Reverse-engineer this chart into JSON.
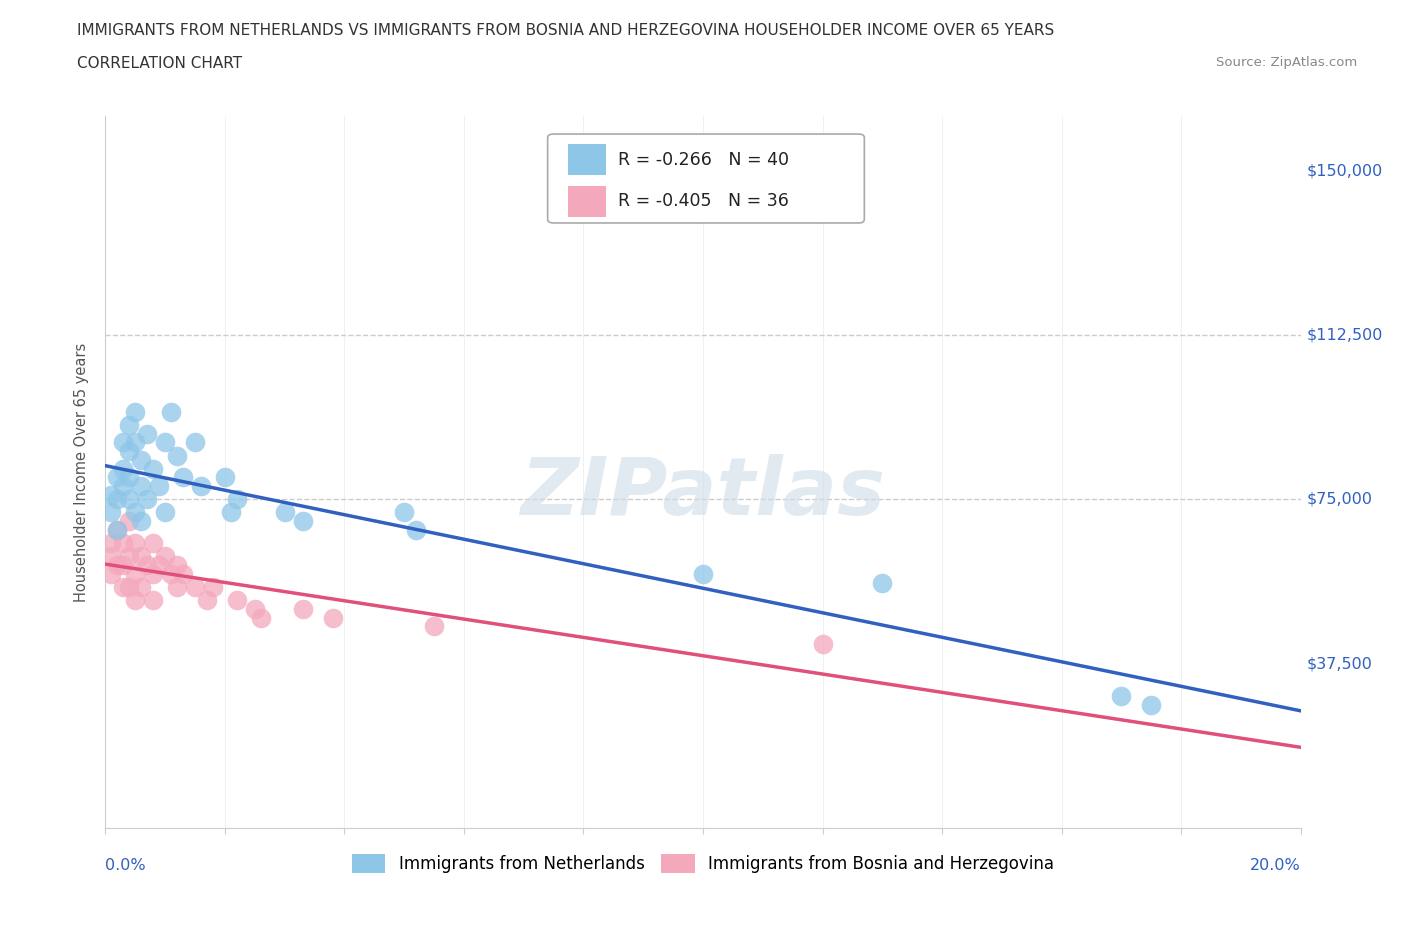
{
  "title_line1": "IMMIGRANTS FROM NETHERLANDS VS IMMIGRANTS FROM BOSNIA AND HERZEGOVINA HOUSEHOLDER INCOME OVER 65 YEARS",
  "title_line2": "CORRELATION CHART",
  "source_text": "Source: ZipAtlas.com",
  "ylabel": "Householder Income Over 65 years",
  "watermark": "ZIPatlas",
  "legend1_label": "Immigrants from Netherlands",
  "legend2_label": "Immigrants from Bosnia and Herzegovina",
  "r1": -0.266,
  "n1": 40,
  "r2": -0.405,
  "n2": 36,
  "color_netherlands": "#8ec6e8",
  "color_bosnia": "#f4a8bc",
  "color_netherlands_line": "#3060c0",
  "color_bosnia_line": "#e0507a",
  "ytick_vals": [
    0,
    37500,
    75000,
    112500,
    150000
  ],
  "ytick_labels": [
    "",
    "$37,500",
    "$75,000",
    "$112,500",
    "$150,000"
  ],
  "xlim": [
    0.0,
    0.2
  ],
  "ylim": [
    0,
    162500
  ],
  "grid_color": "#cccccc",
  "background_color": "#ffffff",
  "nl_x": [
    0.001,
    0.001,
    0.002,
    0.002,
    0.002,
    0.003,
    0.003,
    0.003,
    0.004,
    0.004,
    0.004,
    0.004,
    0.005,
    0.005,
    0.005,
    0.006,
    0.006,
    0.006,
    0.007,
    0.007,
    0.008,
    0.009,
    0.01,
    0.01,
    0.011,
    0.012,
    0.013,
    0.015,
    0.016,
    0.02,
    0.021,
    0.022,
    0.03,
    0.033,
    0.05,
    0.052,
    0.1,
    0.13,
    0.17,
    0.175
  ],
  "nl_y": [
    76000,
    72000,
    80000,
    75000,
    68000,
    88000,
    82000,
    78000,
    92000,
    86000,
    80000,
    75000,
    95000,
    88000,
    72000,
    84000,
    78000,
    70000,
    90000,
    75000,
    82000,
    78000,
    88000,
    72000,
    95000,
    85000,
    80000,
    88000,
    78000,
    80000,
    72000,
    75000,
    72000,
    70000,
    72000,
    68000,
    58000,
    56000,
    30000,
    28000
  ],
  "ba_x": [
    0.001,
    0.001,
    0.001,
    0.002,
    0.002,
    0.003,
    0.003,
    0.003,
    0.004,
    0.004,
    0.004,
    0.005,
    0.005,
    0.005,
    0.006,
    0.006,
    0.007,
    0.008,
    0.008,
    0.008,
    0.009,
    0.01,
    0.011,
    0.012,
    0.012,
    0.013,
    0.015,
    0.017,
    0.018,
    0.022,
    0.025,
    0.026,
    0.033,
    0.038,
    0.055,
    0.12
  ],
  "ba_y": [
    65000,
    62000,
    58000,
    68000,
    60000,
    65000,
    60000,
    55000,
    70000,
    62000,
    55000,
    65000,
    58000,
    52000,
    62000,
    55000,
    60000,
    65000,
    58000,
    52000,
    60000,
    62000,
    58000,
    60000,
    55000,
    58000,
    55000,
    52000,
    55000,
    52000,
    50000,
    48000,
    50000,
    48000,
    46000,
    42000
  ]
}
